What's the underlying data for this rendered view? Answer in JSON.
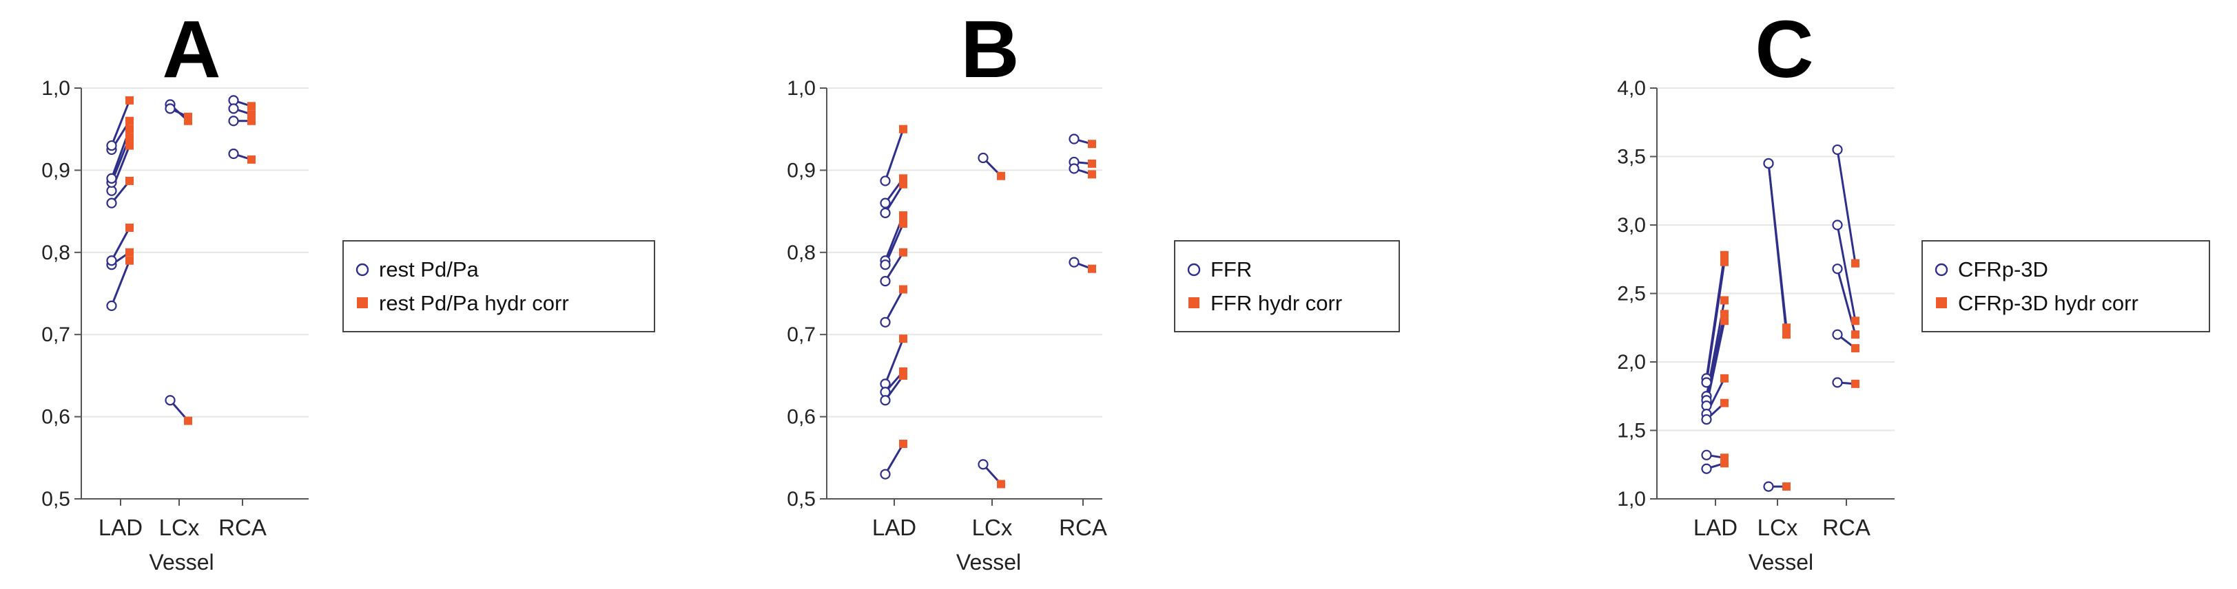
{
  "colors": {
    "before": "#2e2f8a",
    "after": "#ef5a2a",
    "grid": "#e6e6e6",
    "axis": "#555555"
  },
  "chart_data": [
    {
      "type": "scatter",
      "panel_letter": "A",
      "xlabel": "Vessel",
      "ylabel": "",
      "categories": [
        "LAD",
        "LCx",
        "RCA"
      ],
      "ylim": [
        0.5,
        1.0
      ],
      "yticks": [
        0.5,
        0.6,
        0.7,
        0.8,
        0.9,
        1.0
      ],
      "ytick_labels": [
        "0,5",
        "0,6",
        "0,7",
        "0,8",
        "0,9",
        "1,0"
      ],
      "grid": true,
      "legend_position": "right",
      "series": [
        {
          "name": "rest Pd/Pa",
          "marker": "open-circle"
        },
        {
          "name": "rest Pd/Pa hydr corr",
          "marker": "filled-square"
        }
      ],
      "pairs": [
        {
          "category": "LAD",
          "before": 0.735,
          "after": 0.79
        },
        {
          "category": "LAD",
          "before": 0.785,
          "after": 0.8
        },
        {
          "category": "LAD",
          "before": 0.79,
          "after": 0.83
        },
        {
          "category": "LAD",
          "before": 0.86,
          "after": 0.887
        },
        {
          "category": "LAD",
          "before": 0.875,
          "after": 0.93
        },
        {
          "category": "LAD",
          "before": 0.885,
          "after": 0.94
        },
        {
          "category": "LAD",
          "before": 0.89,
          "after": 0.95
        },
        {
          "category": "LAD",
          "before": 0.925,
          "after": 0.96
        },
        {
          "category": "LAD",
          "before": 0.93,
          "after": 0.985
        },
        {
          "category": "LCx",
          "before": 0.98,
          "after": 0.96
        },
        {
          "category": "LCx",
          "before": 0.975,
          "after": 0.965
        },
        {
          "category": "LCx",
          "before": 0.62,
          "after": 0.595
        },
        {
          "category": "RCA",
          "before": 0.985,
          "after": 0.978
        },
        {
          "category": "RCA",
          "before": 0.975,
          "after": 0.968
        },
        {
          "category": "RCA",
          "before": 0.96,
          "after": 0.96
        },
        {
          "category": "RCA",
          "before": 0.92,
          "after": 0.913
        }
      ]
    },
    {
      "type": "scatter",
      "panel_letter": "B",
      "xlabel": "Vessel",
      "ylabel": "",
      "categories": [
        "LAD",
        "LCx",
        "RCA"
      ],
      "ylim": [
        0.5,
        1.0
      ],
      "yticks": [
        0.5,
        0.6,
        0.7,
        0.8,
        0.9,
        1.0
      ],
      "ytick_labels": [
        "0,5",
        "0,6",
        "0,7",
        "0,8",
        "0,9",
        "1,0"
      ],
      "grid": true,
      "legend_position": "right",
      "series": [
        {
          "name": "FFR",
          "marker": "open-circle"
        },
        {
          "name": "FFR hydr corr",
          "marker": "filled-square"
        }
      ],
      "pairs": [
        {
          "category": "LAD",
          "before": 0.887,
          "after": 0.95
        },
        {
          "category": "LAD",
          "before": 0.86,
          "after": 0.89
        },
        {
          "category": "LAD",
          "before": 0.848,
          "after": 0.883
        },
        {
          "category": "LAD",
          "before": 0.79,
          "after": 0.845
        },
        {
          "category": "LAD",
          "before": 0.785,
          "after": 0.835
        },
        {
          "category": "LAD",
          "before": 0.765,
          "after": 0.8
        },
        {
          "category": "LAD",
          "before": 0.715,
          "after": 0.755
        },
        {
          "category": "LAD",
          "before": 0.64,
          "after": 0.695
        },
        {
          "category": "LAD",
          "before": 0.63,
          "after": 0.655
        },
        {
          "category": "LAD",
          "before": 0.62,
          "after": 0.65
        },
        {
          "category": "LAD",
          "before": 0.53,
          "after": 0.567
        },
        {
          "category": "LCx",
          "before": 0.915,
          "after": 0.893
        },
        {
          "category": "LCx",
          "before": 0.542,
          "after": 0.518
        },
        {
          "category": "RCA",
          "before": 0.938,
          "after": 0.932
        },
        {
          "category": "RCA",
          "before": 0.91,
          "after": 0.908
        },
        {
          "category": "RCA",
          "before": 0.902,
          "after": 0.895
        },
        {
          "category": "RCA",
          "before": 0.788,
          "after": 0.78
        }
      ]
    },
    {
      "type": "scatter",
      "panel_letter": "C",
      "xlabel": "Vessel",
      "ylabel": "",
      "categories": [
        "LAD",
        "LCx",
        "RCA"
      ],
      "ylim": [
        1.0,
        4.0
      ],
      "yticks": [
        1.0,
        1.5,
        2.0,
        2.5,
        3.0,
        3.5,
        4.0
      ],
      "ytick_labels": [
        "1,0",
        "1,5",
        "2,0",
        "2,5",
        "3,0",
        "3,5",
        "4,0"
      ],
      "grid": true,
      "legend_position": "right",
      "series": [
        {
          "name": "CFRp-3D",
          "marker": "open-circle"
        },
        {
          "name": "CFRp-3D hydr corr",
          "marker": "filled-square"
        }
      ],
      "pairs": [
        {
          "category": "LAD",
          "before": 1.88,
          "after": 2.78
        },
        {
          "category": "LAD",
          "before": 1.85,
          "after": 2.73
        },
        {
          "category": "LAD",
          "before": 1.75,
          "after": 2.45
        },
        {
          "category": "LAD",
          "before": 1.72,
          "after": 2.35
        },
        {
          "category": "LAD",
          "before": 1.68,
          "after": 2.3
        },
        {
          "category": "LAD",
          "before": 1.62,
          "after": 1.88
        },
        {
          "category": "LAD",
          "before": 1.58,
          "after": 1.7
        },
        {
          "category": "LAD",
          "before": 1.32,
          "after": 1.3
        },
        {
          "category": "LAD",
          "before": 1.22,
          "after": 1.26
        },
        {
          "category": "LCx",
          "before": 3.45,
          "after": 2.25
        },
        {
          "category": "LCx",
          "before": 3.45,
          "after": 2.2
        },
        {
          "category": "LCx",
          "before": 1.09,
          "after": 1.09
        },
        {
          "category": "RCA",
          "before": 3.55,
          "after": 2.72
        },
        {
          "category": "RCA",
          "before": 3.0,
          "after": 2.3
        },
        {
          "category": "RCA",
          "before": 2.68,
          "after": 2.2
        },
        {
          "category": "RCA",
          "before": 2.2,
          "after": 2.1
        },
        {
          "category": "RCA",
          "before": 1.85,
          "after": 1.84
        }
      ]
    }
  ]
}
